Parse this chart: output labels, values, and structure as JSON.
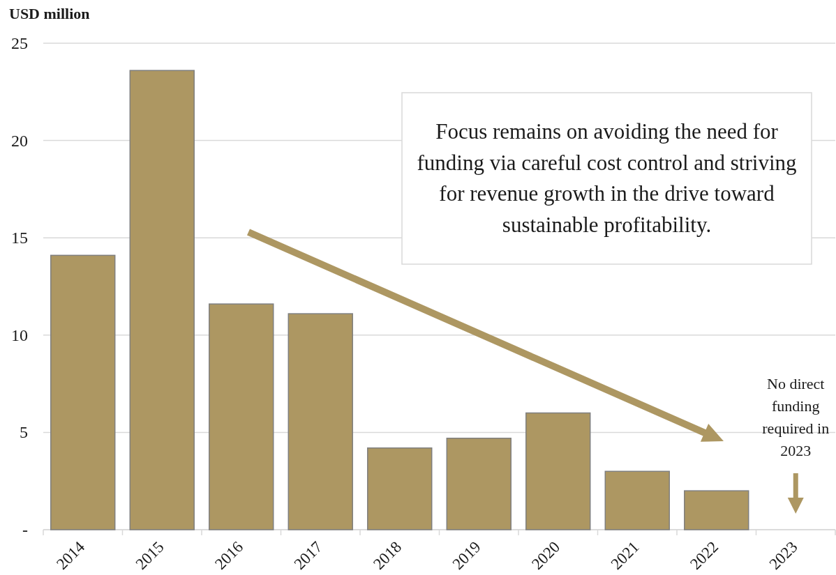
{
  "chart_data": {
    "type": "bar",
    "ylabel": "USD million",
    "categories": [
      "2014",
      "2015",
      "2016",
      "2017",
      "2018",
      "2019",
      "2020",
      "2021",
      "2022",
      "2023"
    ],
    "values": [
      14.1,
      23.6,
      11.6,
      11.1,
      4.2,
      4.7,
      6.0,
      3.0,
      2.0,
      null
    ],
    "color": "#ad9762",
    "ylim": [
      0,
      25
    ],
    "yticks": [
      {
        "value": 0,
        "label": "-"
      },
      5,
      10,
      15,
      20,
      25
    ],
    "grid": "y",
    "annotations": [
      "Focus remains on avoiding the need for funding via careful cost control and striving for revenue growth in the drive toward sustainable profitability.",
      "No direct funding required in 2023"
    ]
  }
}
